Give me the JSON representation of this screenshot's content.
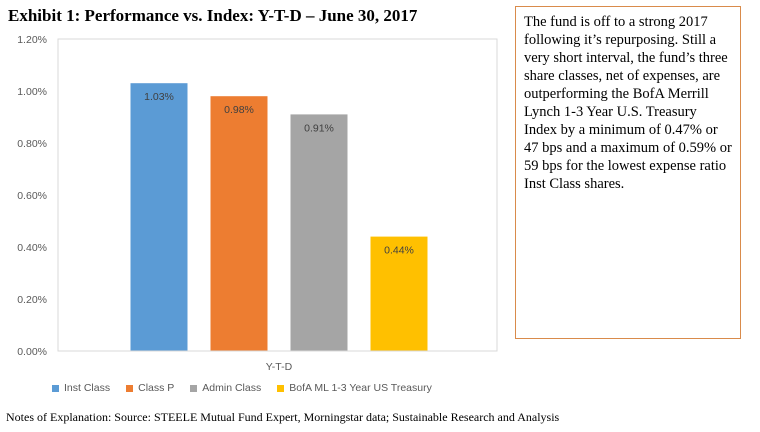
{
  "title": "Exhibit 1:  Performance vs. Index:  Y-T-D – June 30, 2017",
  "note_text": "The fund is off to a strong 2017 following it’s repurposing.  Still a very short interval, the fund’s three share classes, net of expenses, are outperforming the BofA Merrill Lynch 1-3 Year U.S. Treasury Index by a minimum of 0.47% or 47 bps and a maximum of 0.59% or 59 bps for the lowest expense ratio Inst Class shares.",
  "footer": "Notes of Explanation:  Source:  STEELE Mutual Fund Expert, Morningstar data; Sustainable Research and Analysis",
  "chart_data": {
    "type": "bar",
    "categories": [
      "Y-T-D"
    ],
    "y_ticks": [
      "0.00%",
      "0.20%",
      "0.40%",
      "0.60%",
      "0.80%",
      "1.00%",
      "1.20%"
    ],
    "ylim": [
      0,
      1.2
    ],
    "grid": false,
    "legend_position": "bottom-left",
    "series": [
      {
        "name": "Inst Class",
        "value": 1.03,
        "label": "1.03%",
        "color": "#5b9bd5"
      },
      {
        "name": "Class P",
        "value": 0.98,
        "label": "0.98%",
        "color": "#ed7d31"
      },
      {
        "name": "Admin Class",
        "value": 0.91,
        "label": "0.91%",
        "color": "#a5a5a5"
      },
      {
        "name": "BofA ML 1-3 Year US Treasury",
        "value": 0.44,
        "label": "0.44%",
        "color": "#ffc000"
      }
    ]
  }
}
